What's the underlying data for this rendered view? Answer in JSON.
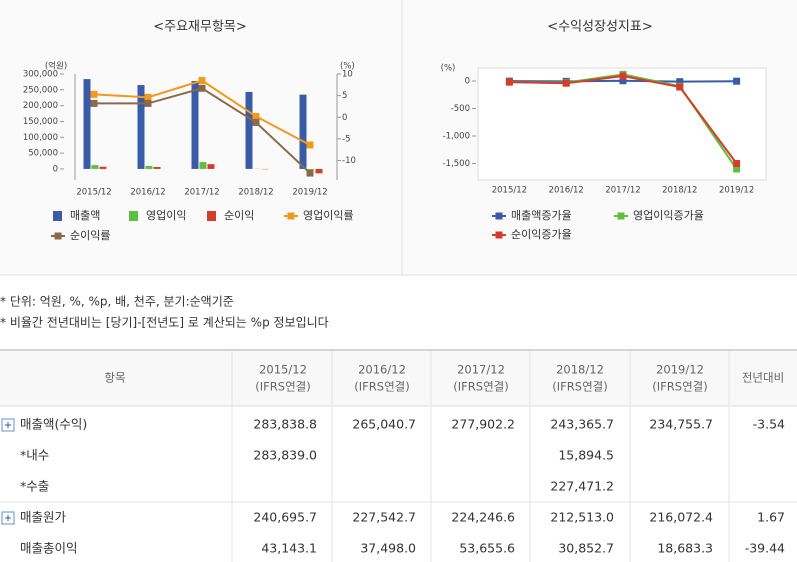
{
  "chart_data": [
    {
      "type": "combo",
      "title": "<주요재무항목>",
      "ylabel": "(억원)",
      "y2label": "(%)",
      "categories": [
        "2015/12",
        "2016/12",
        "2017/12",
        "2018/12",
        "2019/12"
      ],
      "ylim": [
        -35000,
        300000
      ],
      "yticks": [
        0,
        {
          "value": 50000,
          "label": "50,000"
        },
        {
          "value": 100000,
          "label": "100,000"
        },
        {
          "value": 150000,
          "label": "150,000"
        },
        {
          "value": 200000,
          "label": "200,000"
        },
        {
          "value": 250000,
          "label": "250,000"
        },
        {
          "value": 300000,
          "label": "300,000"
        }
      ],
      "y2lim": [
        -14.5,
        10
      ],
      "y2ticks": [
        10,
        5,
        0,
        -5,
        -10
      ],
      "grid": false,
      "series": [
        {
          "name": "매출액",
          "type": "bar",
          "color": "#3a5ba8",
          "values": [
            283838.8,
            265040.7,
            277902.2,
            243365.7,
            234755.7
          ]
        },
        {
          "name": "영업이익",
          "type": "bar",
          "color": "#5cbf3d",
          "values": [
            12000,
            9500,
            21500,
            500,
            -1500
          ]
        },
        {
          "name": "순이익",
          "type": "bar",
          "color": "#d63c2a",
          "values": [
            7000,
            6000,
            15000,
            -1000,
            -14000
          ]
        },
        {
          "name": "영업이익률",
          "type": "line",
          "axis": "y2",
          "color": "#f29a1d",
          "values": [
            5.3,
            4.6,
            8.5,
            0.2,
            -6.4
          ]
        },
        {
          "name": "순이익률",
          "type": "line",
          "axis": "y2",
          "color": "#8b6a4a",
          "values": [
            3.2,
            3.2,
            6.7,
            -1.2,
            -12.9
          ]
        }
      ]
    },
    {
      "type": "line",
      "title": "<수익성장성지표>",
      "ylabel": "(%)",
      "categories": [
        "2015/12",
        "2016/12",
        "2017/12",
        "2018/12",
        "2019/12"
      ],
      "ylim": [
        -1800,
        200
      ],
      "yticks": [
        0,
        -500,
        {
          "value": -1000,
          "label": "-1,000"
        },
        {
          "value": -1500,
          "label": "-1,500"
        }
      ],
      "grid": false,
      "series": [
        {
          "name": "매출액증가율",
          "color": "#3a5ba8",
          "values": [
            -3,
            -6.6,
            4.9,
            -12.4,
            -3.5
          ]
        },
        {
          "name": "영업이익증가율",
          "color": "#5cbf3d",
          "values": [
            -20,
            -30,
            120,
            -95,
            -1600
          ]
        },
        {
          "name": "순이익증가율",
          "color": "#d63c2a",
          "values": [
            -20,
            -40,
            90,
            -110,
            -1500
          ]
        }
      ]
    }
  ],
  "notes": [
    "* 단위: 억원, %, %p, 배, 천주, 분기:순액기준",
    "* 비율간 전년대비는 [당기]-[전년도] 로 계산되는 %p 정보입니다"
  ],
  "table": {
    "header": {
      "item": "항목",
      "periods": [
        {
          "period": "2015/12",
          "basis": "(IFRS연결)"
        },
        {
          "period": "2016/12",
          "basis": "(IFRS연결)"
        },
        {
          "period": "2017/12",
          "basis": "(IFRS연결)"
        },
        {
          "period": "2018/12",
          "basis": "(IFRS연결)"
        },
        {
          "period": "2019/12",
          "basis": "(IFRS연결)"
        }
      ],
      "change": "전년대비"
    },
    "rows": [
      {
        "label": "매출액(수익)",
        "expandable": true,
        "cells": [
          "283,838.8",
          "265,040.7",
          "277,902.2",
          "243,365.7",
          "234,755.7",
          "-3.54"
        ]
      },
      {
        "label": "*내수",
        "expandable": false,
        "cells": [
          "283,839.0",
          null,
          null,
          "15,894.5",
          null,
          null
        ]
      },
      {
        "label": "*수출",
        "expandable": false,
        "cells": [
          null,
          null,
          null,
          "227,471.2",
          null,
          null
        ]
      },
      {
        "label": "매출원가",
        "expandable": true,
        "cells": [
          "240,695.7",
          "227,542.7",
          "224,246.6",
          "212,513.0",
          "216,072.4",
          "1.67"
        ]
      },
      {
        "label": "매출총이익",
        "expandable": false,
        "cells": [
          "43,143.1",
          "37,498.0",
          "53,655.6",
          "30,852.7",
          "18,683.3",
          "-39.44"
        ]
      }
    ]
  }
}
